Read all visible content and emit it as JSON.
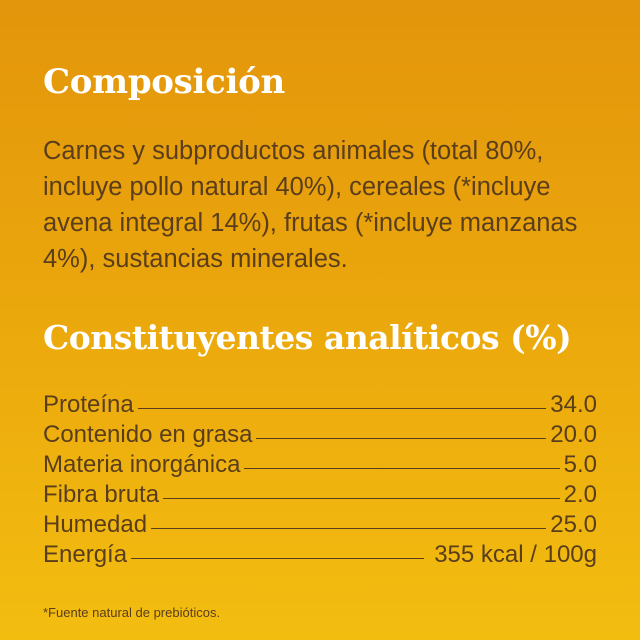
{
  "composition": {
    "title": "Composición",
    "text": "Carnes y subproductos animales (total 80%, incluye pollo natural 40%), cereales (*incluye avena integral 14%), frutas (*incluye manzanas 4%), sustancias minerales."
  },
  "analytical": {
    "title": "Constituyentes analíticos (%)",
    "rows": [
      {
        "label": "Proteína",
        "value": "34.0"
      },
      {
        "label": "Contenido en grasa",
        "value": "20.0"
      },
      {
        "label": "Materia inorgánica",
        "value": "5.0"
      },
      {
        "label": "Fibra bruta",
        "value": "2.0"
      },
      {
        "label": "Humedad",
        "value": "25.0"
      },
      {
        "label": "Energía",
        "value": "355 kcal / 100g"
      }
    ]
  },
  "footnote": "*Fuente natural de prebióticos.",
  "colors": {
    "background_top": "#e3950b",
    "background_bottom": "#f3bd10",
    "heading": "#ffffff",
    "text": "#5a3e1c"
  }
}
